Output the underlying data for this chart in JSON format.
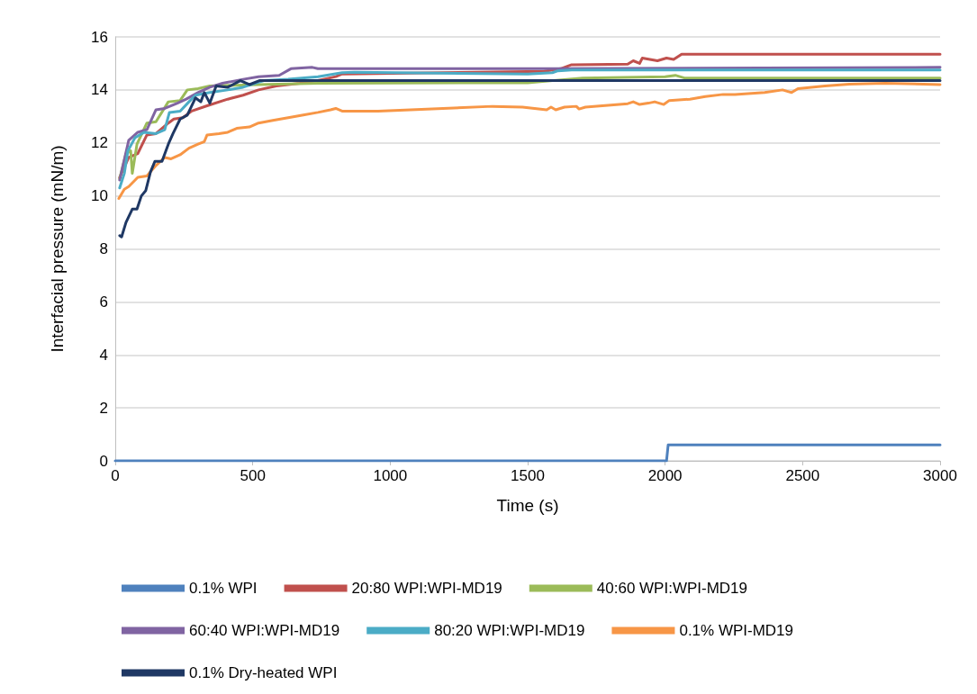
{
  "chart_data": {
    "type": "line",
    "xlabel": "Time (s)",
    "ylabel": "Interfacial pressure (mN/m)",
    "xlim": [
      0,
      3000
    ],
    "xticks": [
      0,
      500,
      1000,
      1500,
      2000,
      2500,
      3000
    ],
    "ylim": [
      0,
      16
    ],
    "yticks": [
      0,
      2,
      4,
      6,
      8,
      10,
      12,
      14,
      16
    ],
    "grid": "y",
    "legend": "bottom",
    "marker": "none",
    "line_style": "solid",
    "series": [
      {
        "name": "0.1% WPI",
        "color": "#4f81bd",
        "x": [
          0,
          2005,
          2011,
          3000
        ],
        "values": [
          0,
          0,
          0.6,
          0.6
        ]
      },
      {
        "name": "20:80 WPI:WPI-MD19",
        "color": "#c0504d",
        "x": [
          16,
          49,
          82,
          115,
          148,
          193,
          213,
          246,
          278,
          334,
          409,
          465,
          521,
          586,
          671,
          737,
          802,
          825,
          1560,
          1620,
          1660,
          1864,
          1884,
          1907,
          1917,
          1972,
          2005,
          2031,
          2060,
          3000
        ],
        "values": [
          10.7,
          11.45,
          11.6,
          12.3,
          12.35,
          12.75,
          12.9,
          12.95,
          13.2,
          13.4,
          13.65,
          13.8,
          14.0,
          14.15,
          14.25,
          14.35,
          14.5,
          14.6,
          14.7,
          14.8,
          14.95,
          14.97,
          15.1,
          15.0,
          15.2,
          15.1,
          15.2,
          15.15,
          15.35,
          15.35
        ]
      },
      {
        "name": "40:60 WPI:WPI-MD19",
        "color": "#9bbb59",
        "x": [
          16,
          39,
          56,
          62,
          79,
          115,
          148,
          193,
          236,
          262,
          301,
          344,
          521,
          737,
          1500,
          1700,
          2000,
          2037,
          2070,
          3000
        ],
        "values": [
          10.65,
          11.6,
          11.7,
          10.85,
          11.95,
          12.75,
          12.8,
          13.55,
          13.6,
          14.0,
          14.05,
          14.15,
          14.2,
          14.25,
          14.27,
          14.45,
          14.5,
          14.55,
          14.45,
          14.45
        ]
      },
      {
        "name": "60:40 WPI:WPI-MD19",
        "color": "#8064a2",
        "x": [
          16,
          49,
          82,
          115,
          148,
          180,
          226,
          258,
          301,
          344,
          390,
          465,
          521,
          596,
          639,
          717,
          737,
          1600,
          3000
        ],
        "values": [
          10.6,
          12.1,
          12.4,
          12.5,
          13.25,
          13.3,
          13.5,
          13.65,
          13.9,
          14.1,
          14.25,
          14.4,
          14.5,
          14.55,
          14.8,
          14.85,
          14.8,
          14.8,
          14.85
        ]
      },
      {
        "name": "80:20 WPI:WPI-MD19",
        "color": "#4bacc6",
        "x": [
          16,
          33,
          46,
          72,
          105,
          148,
          180,
          197,
          236,
          268,
          292,
          344,
          409,
          465,
          540,
          629,
          737,
          825,
          870,
          1500,
          1590,
          1610,
          1660,
          3000
        ],
        "values": [
          10.3,
          10.85,
          11.7,
          12.2,
          12.4,
          12.35,
          12.5,
          13.15,
          13.2,
          13.55,
          13.8,
          13.9,
          14.0,
          14.1,
          14.35,
          14.4,
          14.5,
          14.65,
          14.67,
          14.6,
          14.65,
          14.72,
          14.75,
          14.75
        ]
      },
      {
        "name": "0.1% WPI-MD19",
        "color": "#f79646",
        "x": [
          13,
          33,
          49,
          82,
          115,
          148,
          180,
          203,
          236,
          268,
          301,
          324,
          334,
          377,
          409,
          442,
          488,
          521,
          573,
          629,
          684,
          737,
          783,
          802,
          825,
          956,
          1372,
          1481,
          1569,
          1585,
          1602,
          1634,
          1677,
          1687,
          1710,
          1864,
          1884,
          1907,
          1939,
          1962,
          1995,
          2015,
          2090,
          2146,
          2211,
          2254,
          2362,
          2427,
          2460,
          2483,
          2581,
          2670,
          2800,
          3000
        ],
        "values": [
          9.9,
          10.25,
          10.35,
          10.7,
          10.75,
          11.15,
          11.45,
          11.4,
          11.55,
          11.8,
          11.95,
          12.05,
          12.3,
          12.35,
          12.4,
          12.55,
          12.6,
          12.75,
          12.85,
          12.95,
          13.05,
          13.15,
          13.25,
          13.3,
          13.2,
          13.2,
          13.38,
          13.35,
          13.25,
          13.35,
          13.25,
          13.35,
          13.38,
          13.28,
          13.35,
          13.48,
          13.55,
          13.45,
          13.5,
          13.55,
          13.45,
          13.6,
          13.65,
          13.75,
          13.83,
          13.83,
          13.9,
          14.0,
          13.9,
          14.05,
          14.15,
          14.22,
          14.25,
          14.2
        ]
      },
      {
        "name": "0.1% Dry-heated WPI",
        "color": "#1f3864",
        "x": [
          16,
          23,
          39,
          62,
          79,
          95,
          111,
          128,
          144,
          170,
          193,
          210,
          236,
          262,
          292,
          311,
          324,
          344,
          367,
          409,
          455,
          488,
          524,
          3000
        ],
        "values": [
          8.5,
          8.45,
          9.0,
          9.5,
          9.5,
          10.0,
          10.2,
          10.9,
          11.3,
          11.3,
          11.95,
          12.35,
          12.9,
          13.05,
          13.7,
          13.55,
          13.9,
          13.5,
          14.15,
          14.1,
          14.35,
          14.2,
          14.35,
          14.35
        ]
      }
    ]
  }
}
